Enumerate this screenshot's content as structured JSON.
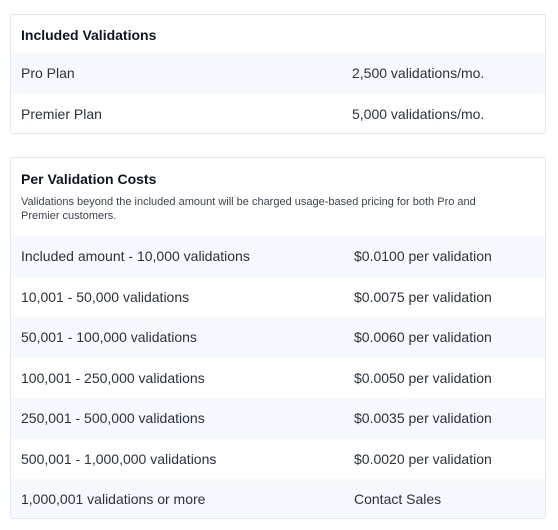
{
  "included": {
    "title": "Included Validations",
    "rows": [
      {
        "label": "Pro Plan",
        "value": "2,500 validations/mo."
      },
      {
        "label": "Premier Plan",
        "value": "5,000 validations/mo."
      }
    ]
  },
  "per_validation": {
    "title": "Per Validation Costs",
    "description": "Validations beyond the included amount will be charged usage-based pricing for both Pro and Premier customers.",
    "rows": [
      {
        "label": "Included amount - 10,000 validations",
        "value": "$0.0100 per validation"
      },
      {
        "label": "10,001 - 50,000 validations",
        "value": "$0.0075 per validation"
      },
      {
        "label": "50,001 - 100,000 validations",
        "value": "$0.0060 per validation"
      },
      {
        "label": "100,001 - 250,000 validations",
        "value": "$0.0050 per validation"
      },
      {
        "label": "250,001 - 500,000 validations",
        "value": "$0.0035 per validation"
      },
      {
        "label": "500,001 - 1,000,000 validations",
        "value": "$0.0020 per validation"
      },
      {
        "label": "1,000,001 validations or more",
        "value": "Contact Sales"
      }
    ]
  }
}
